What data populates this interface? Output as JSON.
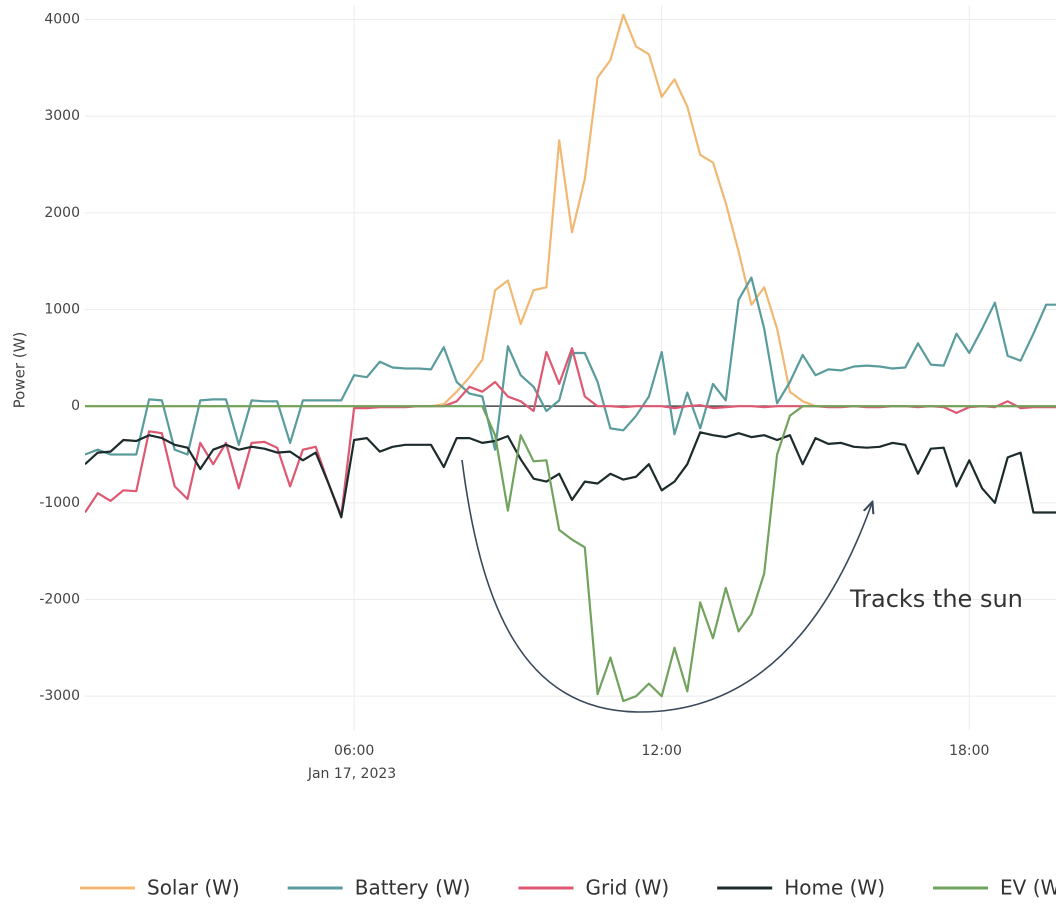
{
  "chart_data": {
    "type": "line",
    "y_label": "Power (W)",
    "x_date_label": "Jan 17, 2023",
    "annotation": "Tracks the sun",
    "xlim": [
      "00:45",
      "19:45"
    ],
    "xticks": [
      "06:00",
      "12:00",
      "18:00"
    ],
    "ylim": [
      -3350,
      4150
    ],
    "yticks": [
      -3000,
      -2000,
      -1000,
      0,
      1000,
      2000,
      3000,
      4000
    ],
    "grid": true,
    "legend": "bottom",
    "x": [
      "00:45",
      "01:00",
      "01:15",
      "01:30",
      "01:45",
      "02:00",
      "02:15",
      "02:30",
      "02:45",
      "03:00",
      "03:15",
      "03:30",
      "03:45",
      "04:00",
      "04:15",
      "04:30",
      "04:45",
      "05:00",
      "05:15",
      "05:30",
      "05:45",
      "06:00",
      "06:15",
      "06:30",
      "06:45",
      "07:00",
      "07:15",
      "07:30",
      "07:45",
      "08:00",
      "08:15",
      "08:30",
      "08:45",
      "09:00",
      "09:15",
      "09:30",
      "09:45",
      "10:00",
      "10:15",
      "10:30",
      "10:45",
      "11:00",
      "11:15",
      "11:30",
      "11:45",
      "12:00",
      "12:15",
      "12:30",
      "12:45",
      "13:00",
      "13:15",
      "13:30",
      "13:45",
      "14:00",
      "14:15",
      "14:30",
      "14:45",
      "15:00",
      "15:15",
      "15:30",
      "15:45",
      "16:00",
      "16:15",
      "16:30",
      "16:45",
      "17:00",
      "17:15",
      "17:30",
      "17:45",
      "18:00",
      "18:15",
      "18:30",
      "18:45",
      "19:00",
      "19:15",
      "19:30",
      "19:45"
    ],
    "series": [
      {
        "name": "Solar (W)",
        "color": "#f0b872",
        "values": [
          0,
          0,
          0,
          0,
          0,
          0,
          0,
          0,
          0,
          0,
          0,
          0,
          0,
          0,
          0,
          0,
          0,
          0,
          0,
          0,
          0,
          0,
          0,
          0,
          0,
          0,
          0,
          0,
          20,
          150,
          300,
          480,
          1200,
          1300,
          850,
          1200,
          1230,
          2750,
          1800,
          2350,
          3400,
          3580,
          4050,
          3720,
          3640,
          3200,
          3380,
          3100,
          2600,
          2520,
          2100,
          1600,
          1050,
          1230,
          800,
          150,
          50,
          0,
          0,
          0,
          0,
          0,
          0,
          0,
          0,
          0,
          0,
          0,
          0,
          0,
          0,
          0,
          0,
          0,
          0,
          0,
          0
        ]
      },
      {
        "name": "Battery (W)",
        "color": "#5a9c9c",
        "values": [
          -500,
          -450,
          -500,
          -500,
          -500,
          70,
          60,
          -450,
          -500,
          60,
          70,
          70,
          -400,
          60,
          50,
          50,
          -380,
          60,
          60,
          60,
          60,
          320,
          300,
          460,
          400,
          390,
          390,
          380,
          610,
          250,
          130,
          100,
          -450,
          620,
          320,
          200,
          -50,
          60,
          550,
          550,
          250,
          -230,
          -250,
          -100,
          100,
          560,
          -290,
          140,
          -230,
          230,
          60,
          1100,
          1330,
          800,
          30,
          250,
          530,
          320,
          380,
          370,
          410,
          420,
          410,
          390,
          400,
          650,
          430,
          420,
          750,
          550,
          800,
          1070,
          520,
          470,
          750,
          1050,
          1050
        ]
      },
      {
        "name": "Grid (W)",
        "color": "#dd5870",
        "values": [
          -1100,
          -900,
          -980,
          -870,
          -880,
          -260,
          -280,
          -830,
          -960,
          -380,
          -600,
          -380,
          -850,
          -380,
          -370,
          -430,
          -830,
          -450,
          -420,
          -800,
          -1130,
          -20,
          -20,
          -10,
          -10,
          -10,
          0,
          0,
          0,
          50,
          200,
          150,
          250,
          100,
          50,
          -50,
          560,
          230,
          600,
          100,
          0,
          0,
          -10,
          0,
          0,
          0,
          -20,
          0,
          10,
          -20,
          -10,
          0,
          0,
          -10,
          0,
          0,
          0,
          0,
          -10,
          -10,
          0,
          -10,
          -10,
          0,
          0,
          -10,
          0,
          -10,
          -70,
          -10,
          0,
          -10,
          50,
          -20,
          -10,
          -10,
          -10
        ]
      },
      {
        "name": "Home (W)",
        "color": "#1c2b2b",
        "values": [
          -600,
          -480,
          -470,
          -350,
          -360,
          -300,
          -330,
          -400,
          -430,
          -650,
          -450,
          -400,
          -450,
          -420,
          -440,
          -480,
          -470,
          -560,
          -480,
          -800,
          -1150,
          -350,
          -330,
          -470,
          -420,
          -400,
          -400,
          -400,
          -630,
          -330,
          -330,
          -380,
          -360,
          -310,
          -550,
          -750,
          -780,
          -700,
          -970,
          -780,
          -800,
          -700,
          -760,
          -730,
          -600,
          -870,
          -780,
          -600,
          -270,
          -300,
          -320,
          -280,
          -320,
          -300,
          -350,
          -300,
          -600,
          -330,
          -390,
          -380,
          -420,
          -430,
          -420,
          -380,
          -400,
          -700,
          -440,
          -430,
          -830,
          -560,
          -850,
          -1000,
          -530,
          -480,
          -1100,
          -1100,
          -1100
        ]
      },
      {
        "name": "EV (W)",
        "color": "#72a35e",
        "values": [
          0,
          0,
          0,
          0,
          0,
          0,
          0,
          0,
          0,
          0,
          0,
          0,
          0,
          0,
          0,
          0,
          0,
          0,
          0,
          0,
          0,
          0,
          0,
          0,
          0,
          0,
          0,
          0,
          0,
          0,
          0,
          0,
          -300,
          -1080,
          -300,
          -570,
          -560,
          -1280,
          -1380,
          -1460,
          -2980,
          -2600,
          -3050,
          -3000,
          -2870,
          -3000,
          -2500,
          -2950,
          -2030,
          -2400,
          -1880,
          -2330,
          -2150,
          -1730,
          -500,
          -100,
          0,
          0,
          0,
          0,
          0,
          0,
          0,
          0,
          0,
          0,
          0,
          0,
          0,
          0,
          0,
          0,
          0,
          0,
          0,
          0,
          0
        ]
      }
    ]
  }
}
